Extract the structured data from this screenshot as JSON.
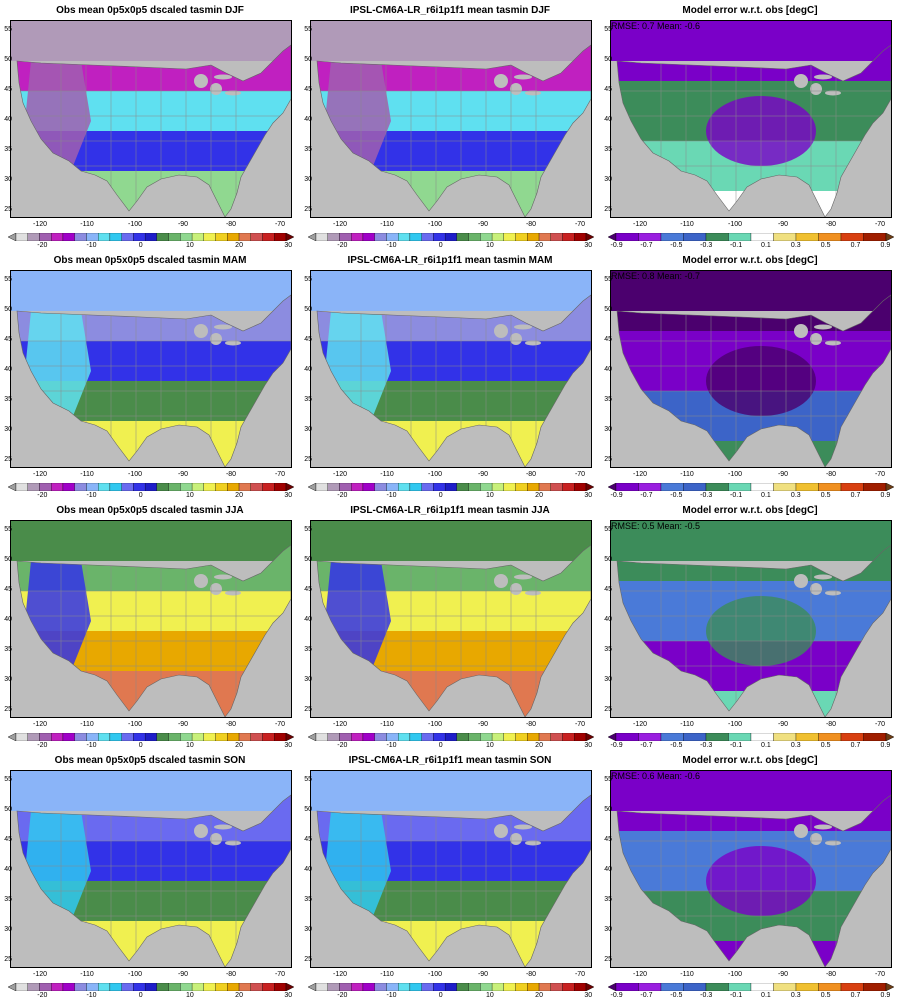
{
  "panels": [
    {
      "title": "Obs mean 0p5x0p5 dscaled tasmin DJF",
      "kind": "abs",
      "season": "DJF",
      "stats": ""
    },
    {
      "title": "IPSL-CM6A-LR_r6i1p1f1 mean tasmin DJF",
      "kind": "abs",
      "season": "DJF",
      "stats": ""
    },
    {
      "title": "Model error w.r.t. obs [degC]",
      "kind": "err",
      "season": "DJF",
      "stats": "RMSE: 0.7  Mean: -0.6"
    },
    {
      "title": "Obs mean 0p5x0p5 dscaled tasmin MAM",
      "kind": "abs",
      "season": "MAM",
      "stats": ""
    },
    {
      "title": "IPSL-CM6A-LR_r6i1p1f1 mean tasmin MAM",
      "kind": "abs",
      "season": "MAM",
      "stats": ""
    },
    {
      "title": "Model error w.r.t. obs [degC]",
      "kind": "err",
      "season": "MAM",
      "stats": "RMSE: 0.8  Mean: -0.7"
    },
    {
      "title": "Obs mean 0p5x0p5 dscaled tasmin JJA",
      "kind": "abs",
      "season": "JJA",
      "stats": ""
    },
    {
      "title": "IPSL-CM6A-LR_r6i1p1f1 mean tasmin JJA",
      "kind": "abs",
      "season": "JJA",
      "stats": ""
    },
    {
      "title": "Model error w.r.t. obs [degC]",
      "kind": "err",
      "season": "JJA",
      "stats": "RMSE: 0.5  Mean: -0.5"
    },
    {
      "title": "Obs mean 0p5x0p5 dscaled tasmin SON",
      "kind": "abs",
      "season": "SON",
      "stats": ""
    },
    {
      "title": "IPSL-CM6A-LR_r6i1p1f1 mean tasmin SON",
      "kind": "abs",
      "season": "SON",
      "stats": ""
    },
    {
      "title": "Model error w.r.t. obs [degC]",
      "kind": "err",
      "season": "SON",
      "stats": "RMSE: 0.6  Mean: -0.6"
    }
  ],
  "axes": {
    "x_ticks": [
      "-120",
      "-110",
      "-100",
      "-90",
      "-80",
      "-70"
    ],
    "y_ticks": [
      "55",
      "50",
      "45",
      "40",
      "35",
      "30",
      "25"
    ]
  },
  "abs_colorbar": {
    "labels": [
      "-20",
      "-10",
      "0",
      "10",
      "20",
      "30"
    ],
    "colors": [
      "#9e9e9e",
      "#e0e0e0",
      "#b09ab8",
      "#a05fb0",
      "#c020c0",
      "#a000c8",
      "#8c8ce0",
      "#8ab4f8",
      "#5fe0f0",
      "#30c8f0",
      "#6a6af0",
      "#3232e8",
      "#1e1ec8",
      "#4a8c4a",
      "#6ab46a",
      "#90d890",
      "#c8f07a",
      "#f0f050",
      "#f0d020",
      "#e8a800",
      "#e07850",
      "#d05050",
      "#c82020",
      "#a00000",
      "#6e0000"
    ]
  },
  "err_colorbar": {
    "labels": [
      "-0.9",
      "-0.7",
      "-0.5",
      "-0.3",
      "-0.1",
      "0.1",
      "0.3",
      "0.5",
      "0.7",
      "0.9"
    ],
    "colors": [
      "#4b006e",
      "#7a00c8",
      "#9a1ee0",
      "#4a7ad8",
      "#3c64c8",
      "#3c8c5a",
      "#6ad8b4",
      "#ffffff",
      "#f0e080",
      "#f0c030",
      "#f09020",
      "#d84010",
      "#a01e00",
      "#6e3c14"
    ]
  },
  "layout_notes": "colorbar colors listed are for display; map field is stylized"
}
